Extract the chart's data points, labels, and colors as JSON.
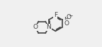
{
  "bg_color": "#f0f0f0",
  "bond_color": "#404040",
  "line_width": 1.2,
  "font_size": 6.5,
  "fig_width": 1.44,
  "fig_height": 0.67,
  "dpi": 100,
  "xlim": [
    0.0,
    1.0
  ],
  "ylim": [
    0.05,
    0.95
  ]
}
